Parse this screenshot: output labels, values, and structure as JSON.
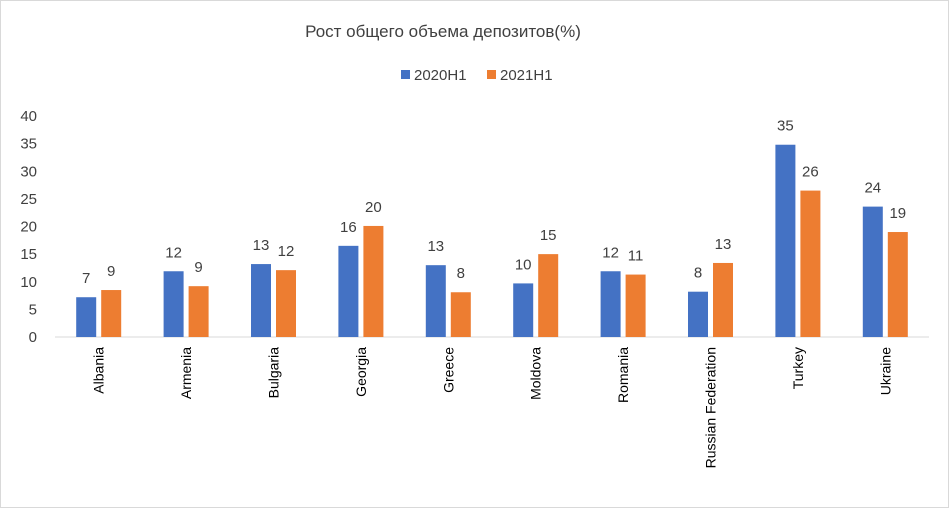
{
  "chart_data": {
    "type": "bar",
    "title": "Рост общего объема депозитов(%)",
    "xlabel": "",
    "ylabel": "",
    "ylim": [
      0,
      40
    ],
    "yticks": [
      0,
      5,
      10,
      15,
      20,
      25,
      30,
      35,
      40
    ],
    "grid": false,
    "legend_position": "top",
    "categories": [
      "Albania",
      "Armenia",
      "Bulgaria",
      "Georgia",
      "Greece",
      "Moldova",
      "Romania",
      "Russian Federation",
      "Turkey",
      "Ukraine"
    ],
    "series": [
      {
        "name": "2020H1",
        "color": "#4472C4",
        "values": [
          7.2,
          11.9,
          13.2,
          16.5,
          13.0,
          9.7,
          11.9,
          8.2,
          34.8,
          23.6
        ],
        "labels": [
          "7",
          "12",
          "13",
          "16",
          "13",
          "10",
          "12",
          "8",
          "35",
          "24"
        ]
      },
      {
        "name": "2021H1",
        "color": "#ED7D31",
        "values": [
          8.5,
          9.2,
          12.1,
          20.1,
          8.1,
          15.0,
          11.3,
          13.4,
          26.5,
          19.0
        ],
        "labels": [
          "9",
          "9",
          "12",
          "20",
          "8",
          "15",
          "11",
          "13",
          "26",
          "19"
        ]
      }
    ]
  }
}
